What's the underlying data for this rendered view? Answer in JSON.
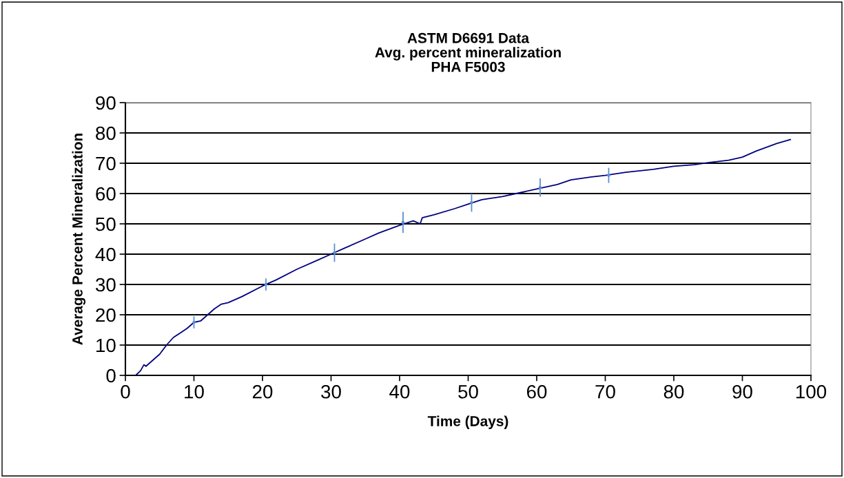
{
  "chart_data": {
    "type": "line",
    "title": "ASTM D6691 Data\nAvg. percent mineralization\nPHA F5003",
    "xlabel": "Time (Days)",
    "ylabel": "Average Percent Mineralization",
    "xlim": [
      0,
      100
    ],
    "xticks": [
      0,
      10,
      20,
      30,
      40,
      50,
      60,
      70,
      80,
      90,
      100
    ],
    "ylim": [
      0,
      90
    ],
    "yticks": [
      0,
      10,
      20,
      30,
      40,
      50,
      60,
      70,
      80,
      90
    ],
    "grid": "y",
    "legend": false,
    "series": [
      {
        "color": "#000080",
        "x": [
          0,
          1.5,
          2.2,
          2.7,
          3,
          4,
          5,
          6,
          7,
          8,
          9,
          10,
          11,
          12,
          13,
          14,
          15,
          17,
          20,
          22,
          25,
          28,
          30,
          32,
          35,
          37,
          40,
          42,
          43,
          43.3,
          45,
          48,
          50,
          52,
          55,
          57,
          60,
          63,
          65,
          68,
          70,
          73,
          77,
          80,
          83,
          85,
          88,
          90,
          92,
          95,
          97
        ],
        "values": [
          0,
          0,
          1.5,
          3.5,
          3,
          5,
          7,
          10,
          12.5,
          14,
          15.5,
          17.5,
          18,
          20,
          22,
          23.5,
          24,
          26,
          29.5,
          31.5,
          35,
          38,
          40,
          42,
          45,
          47,
          49.5,
          51,
          50,
          52,
          53,
          55,
          56.5,
          58,
          59,
          60,
          61.5,
          63,
          64.5,
          65.5,
          66,
          67,
          68,
          69,
          69.5,
          70.2,
          71,
          72,
          74,
          76.5,
          77.8
        ]
      },
      {
        "type": "scatter",
        "color": "#5b8fd0",
        "x": [
          10,
          20.5,
          30.5,
          40.5,
          50.5,
          60.5,
          70.5
        ],
        "values": [
          17.5,
          30,
          40.5,
          50.5,
          57,
          62,
          66
        ],
        "errors": [
          2,
          2,
          3,
          3.5,
          3,
          3,
          2.5
        ]
      }
    ]
  }
}
